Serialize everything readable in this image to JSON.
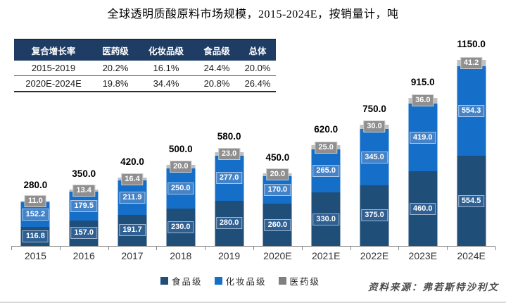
{
  "title": "全球透明质酸原料市场规模，2015-2024E，按销量计，吨",
  "cagr_table": {
    "headers": [
      "复合增长率",
      "医药级",
      "化妆品级",
      "食品级",
      "总体"
    ],
    "rows": [
      [
        "2015-2019",
        "20.2%",
        "16.1%",
        "24.4%",
        "20.0%"
      ],
      [
        "2020E-2024E",
        "19.8%",
        "34.4%",
        "20.8%",
        "26.4%"
      ]
    ]
  },
  "chart_data": {
    "type": "bar",
    "stacked": true,
    "title": "全球透明质酸原料市场规模，2015-2024E，按销量计，吨",
    "unit": "吨",
    "categories": [
      "2015",
      "2016",
      "2017",
      "2018",
      "2019",
      "2020E",
      "2021E",
      "2022E",
      "2023E",
      "2024E"
    ],
    "series": [
      {
        "name": "食品级",
        "color": "#1F4E79",
        "label_bg": "#2F6093",
        "values": [
          116.8,
          157.0,
          191.7,
          230.0,
          280.0,
          260.0,
          330.0,
          375.0,
          460.0,
          554.5
        ]
      },
      {
        "name": "化妆品级",
        "color": "#156FC8",
        "label_bg": "#4583C9",
        "values": [
          152.2,
          179.5,
          211.9,
          250.0,
          277.0,
          170.0,
          265.0,
          345.0,
          419.0,
          554.3
        ]
      },
      {
        "name": "医药级",
        "color": "#BFBFBF",
        "label_bg": "#8F8F8F",
        "values": [
          11.0,
          13.4,
          16.4,
          20.0,
          23.0,
          20.0,
          25.0,
          30.0,
          36.0,
          41.2
        ]
      }
    ],
    "totals": [
      280.0,
      350.0,
      420.0,
      500.0,
      580.0,
      450.0,
      620.0,
      750.0,
      915.0,
      1150.0
    ],
    "ylim": [
      0,
      1200
    ],
    "grid": false,
    "legend_position": "bottom"
  },
  "legend": [
    {
      "label": "食品级",
      "color": "#1F4E79"
    },
    {
      "label": "化妆品级",
      "color": "#156FC8"
    },
    {
      "label": "医药级",
      "color": "#808080"
    }
  ],
  "source": "资料来源：弗若斯特沙利文"
}
